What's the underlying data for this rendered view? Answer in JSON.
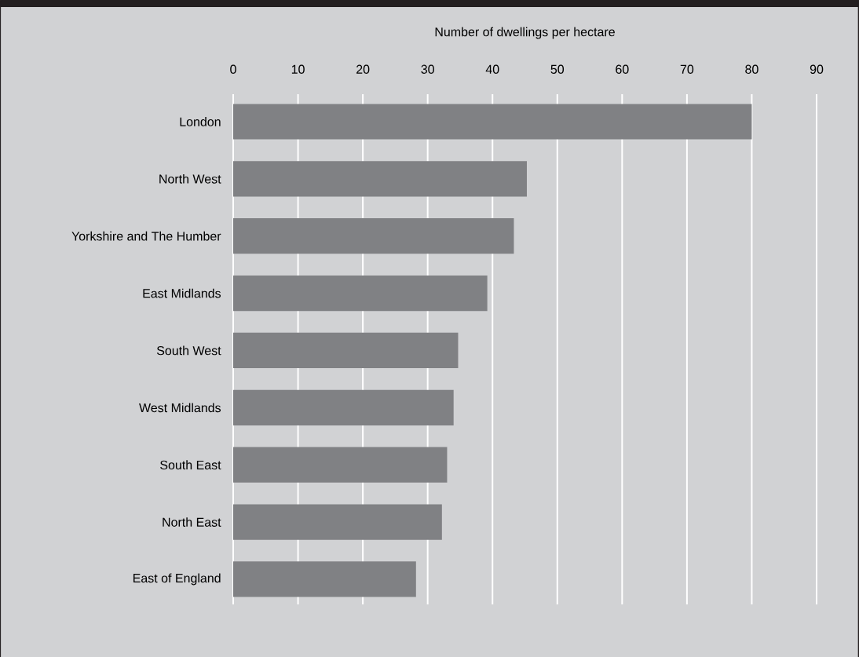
{
  "chart_data": {
    "type": "bar",
    "orientation": "horizontal",
    "xlabel": "Number  of dwellings per hectare",
    "categories": [
      "London",
      "North West",
      "Yorkshire and The Humber",
      "East Midlands",
      "South West",
      "West Midlands",
      "South East",
      "North East",
      "East of England"
    ],
    "values": [
      80,
      45.3,
      43.3,
      39.2,
      34.7,
      34.0,
      33.0,
      32.2,
      28.2
    ],
    "color": "#808184",
    "xlim": [
      0,
      90
    ],
    "xticks": [
      0,
      10,
      20,
      30,
      40,
      50,
      60,
      70,
      80,
      90
    ],
    "grid": "x"
  }
}
